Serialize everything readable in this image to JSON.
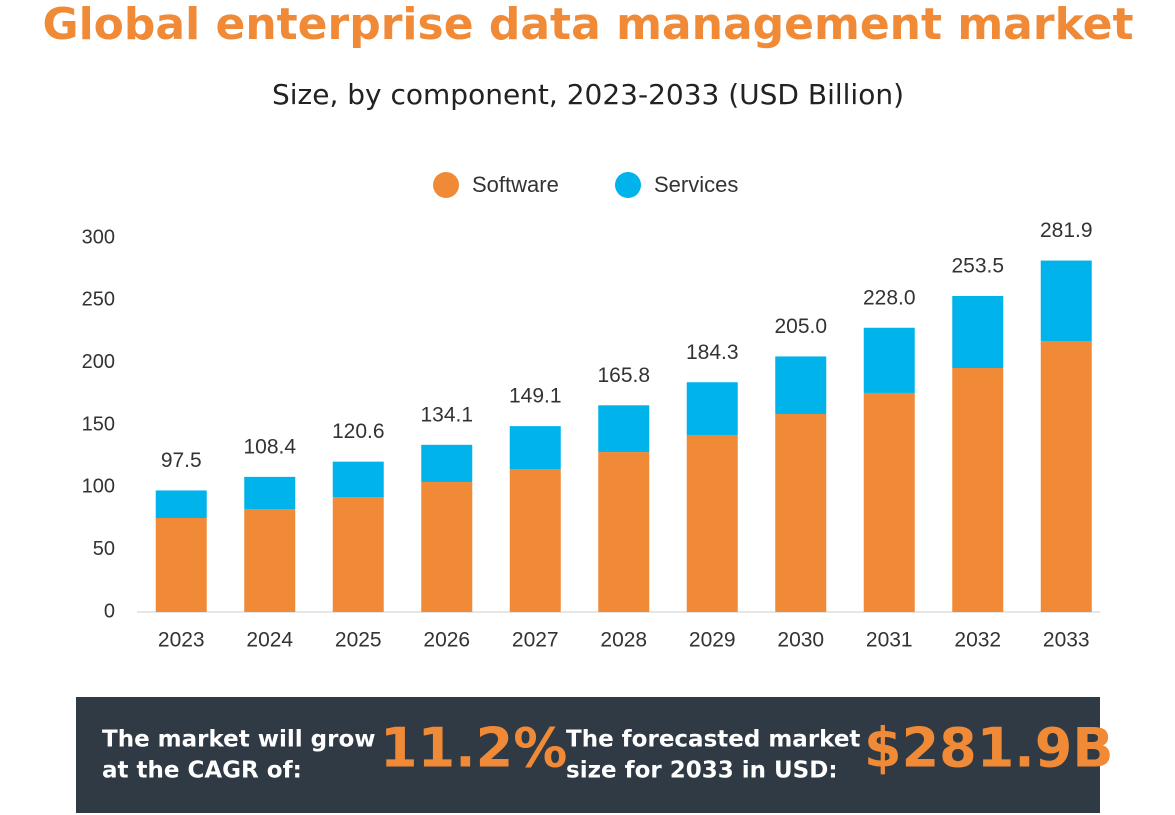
{
  "chart_data": {
    "type": "bar",
    "stacked": true,
    "title": "Global enterprise data management market",
    "subtitle": "Size, by component, 2023-2033 (USD Billion)",
    "categories": [
      "2023",
      "2024",
      "2025",
      "2026",
      "2027",
      "2028",
      "2029",
      "2030",
      "2031",
      "2032",
      "2033"
    ],
    "series": [
      {
        "name": "Software",
        "color": "#f08a37",
        "values": [
          75.4,
          82.6,
          92.2,
          104.3,
          114.7,
          128.3,
          142.0,
          158.8,
          175.7,
          195.7,
          217.4
        ]
      },
      {
        "name": "Services",
        "color": "#00b3ea",
        "values": [
          22.1,
          25.8,
          28.4,
          29.8,
          34.4,
          37.5,
          42.3,
          46.2,
          52.3,
          57.8,
          64.5
        ]
      }
    ],
    "totals": {
      "values": [
        97.5,
        108.4,
        120.6,
        134.1,
        149.1,
        165.8,
        184.3,
        205.0,
        228.0,
        253.5,
        281.9
      ],
      "value_labels": [
        "97.5",
        "108.4",
        "120.6",
        "134.1",
        "149.1",
        "165.8",
        "184.3",
        "205.0",
        "228.0",
        "253.5",
        "281.9"
      ]
    },
    "ylim": [
      0,
      300
    ],
    "yticks": [
      0,
      50,
      100,
      150,
      200,
      250,
      300
    ],
    "grid": false,
    "legend": "top"
  },
  "summary": {
    "cagr_text": [
      "The market will grow",
      "at the CAGR of:"
    ],
    "cagr_value": "11.2%",
    "forecast_text": [
      "The forecasted market",
      "size for 2033 in USD:"
    ],
    "forecast_value": "$281.9B"
  }
}
